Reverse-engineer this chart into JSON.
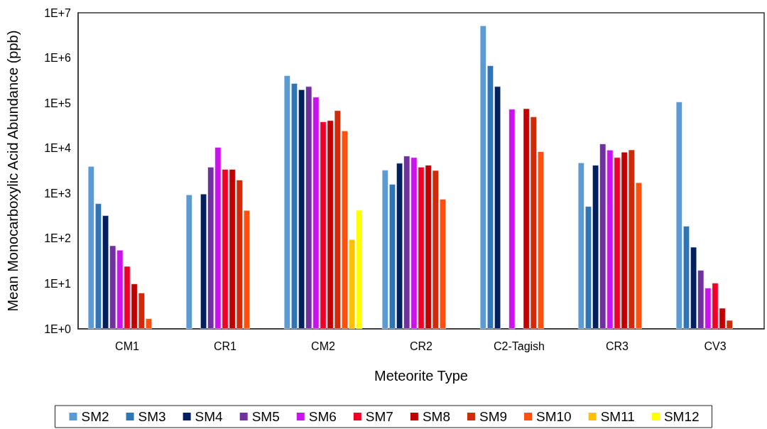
{
  "chart_data": {
    "type": "bar",
    "xlabel": "Meteorite Type",
    "ylabel": "Mean Monocarboxylic Acid Abundance (ppb)",
    "log": true,
    "grid": false,
    "legend": "bottom",
    "categories": [
      "CM1",
      "CR1",
      "CM2",
      "CR2",
      "C2-Tagish",
      "CR3",
      "CV3"
    ],
    "ylim": [
      1,
      10000000
    ],
    "yticks": [
      {
        "value": 1,
        "label": "1E+0"
      },
      {
        "value": 10,
        "label": "1E+1"
      },
      {
        "value": 100,
        "label": "1E+2"
      },
      {
        "value": 1000,
        "label": "1E+3"
      },
      {
        "value": 10000,
        "label": "1E+4"
      },
      {
        "value": 100000,
        "label": "1E+5"
      },
      {
        "value": 1000000,
        "label": "1E+6"
      },
      {
        "value": 10000000,
        "label": "1E+7"
      }
    ],
    "series": [
      {
        "name": "SM2",
        "color": "#5b9bd5",
        "values": [
          4000,
          940,
          410000,
          3300,
          5200000,
          4800,
          107000
        ]
      },
      {
        "name": "SM3",
        "color": "#2e75b6",
        "values": [
          600,
          null,
          275000,
          1600,
          680000,
          520,
          190
        ]
      },
      {
        "name": "SM4",
        "color": "#002060",
        "values": [
          325,
          980,
          200000,
          4700,
          235000,
          4250,
          65
        ]
      },
      {
        "name": "SM5",
        "color": "#7030a0",
        "values": [
          70,
          3850,
          235000,
          6800,
          null,
          12600,
          20
        ]
      },
      {
        "name": "SM6",
        "color": "#cc11f0",
        "values": [
          56,
          10600,
          137000,
          6300,
          74000,
          9200,
          8.1
        ]
      },
      {
        "name": "SM7",
        "color": "#ee0028",
        "values": [
          24.5,
          3450,
          39000,
          3850,
          null,
          6300,
          10.4
        ]
      },
      {
        "name": "SM8",
        "color": "#c00000",
        "values": [
          10,
          3450,
          41500,
          4250,
          76000,
          8300,
          2.9
        ]
      },
      {
        "name": "SM9",
        "color": "#d02a0a",
        "values": [
          6.3,
          2000,
          69000,
          3250,
          50000,
          9300,
          1.56
        ]
      },
      {
        "name": "SM10",
        "color": "#ff5010",
        "values": [
          1.7,
          425,
          24500,
          750,
          8500,
          1750,
          null
        ]
      },
      {
        "name": "SM11",
        "color": "#ffc000",
        "values": [
          null,
          null,
          96,
          null,
          null,
          null,
          null
        ]
      },
      {
        "name": "SM12",
        "color": "#ffff00",
        "values": [
          null,
          null,
          427,
          null,
          null,
          null,
          null
        ]
      }
    ]
  }
}
